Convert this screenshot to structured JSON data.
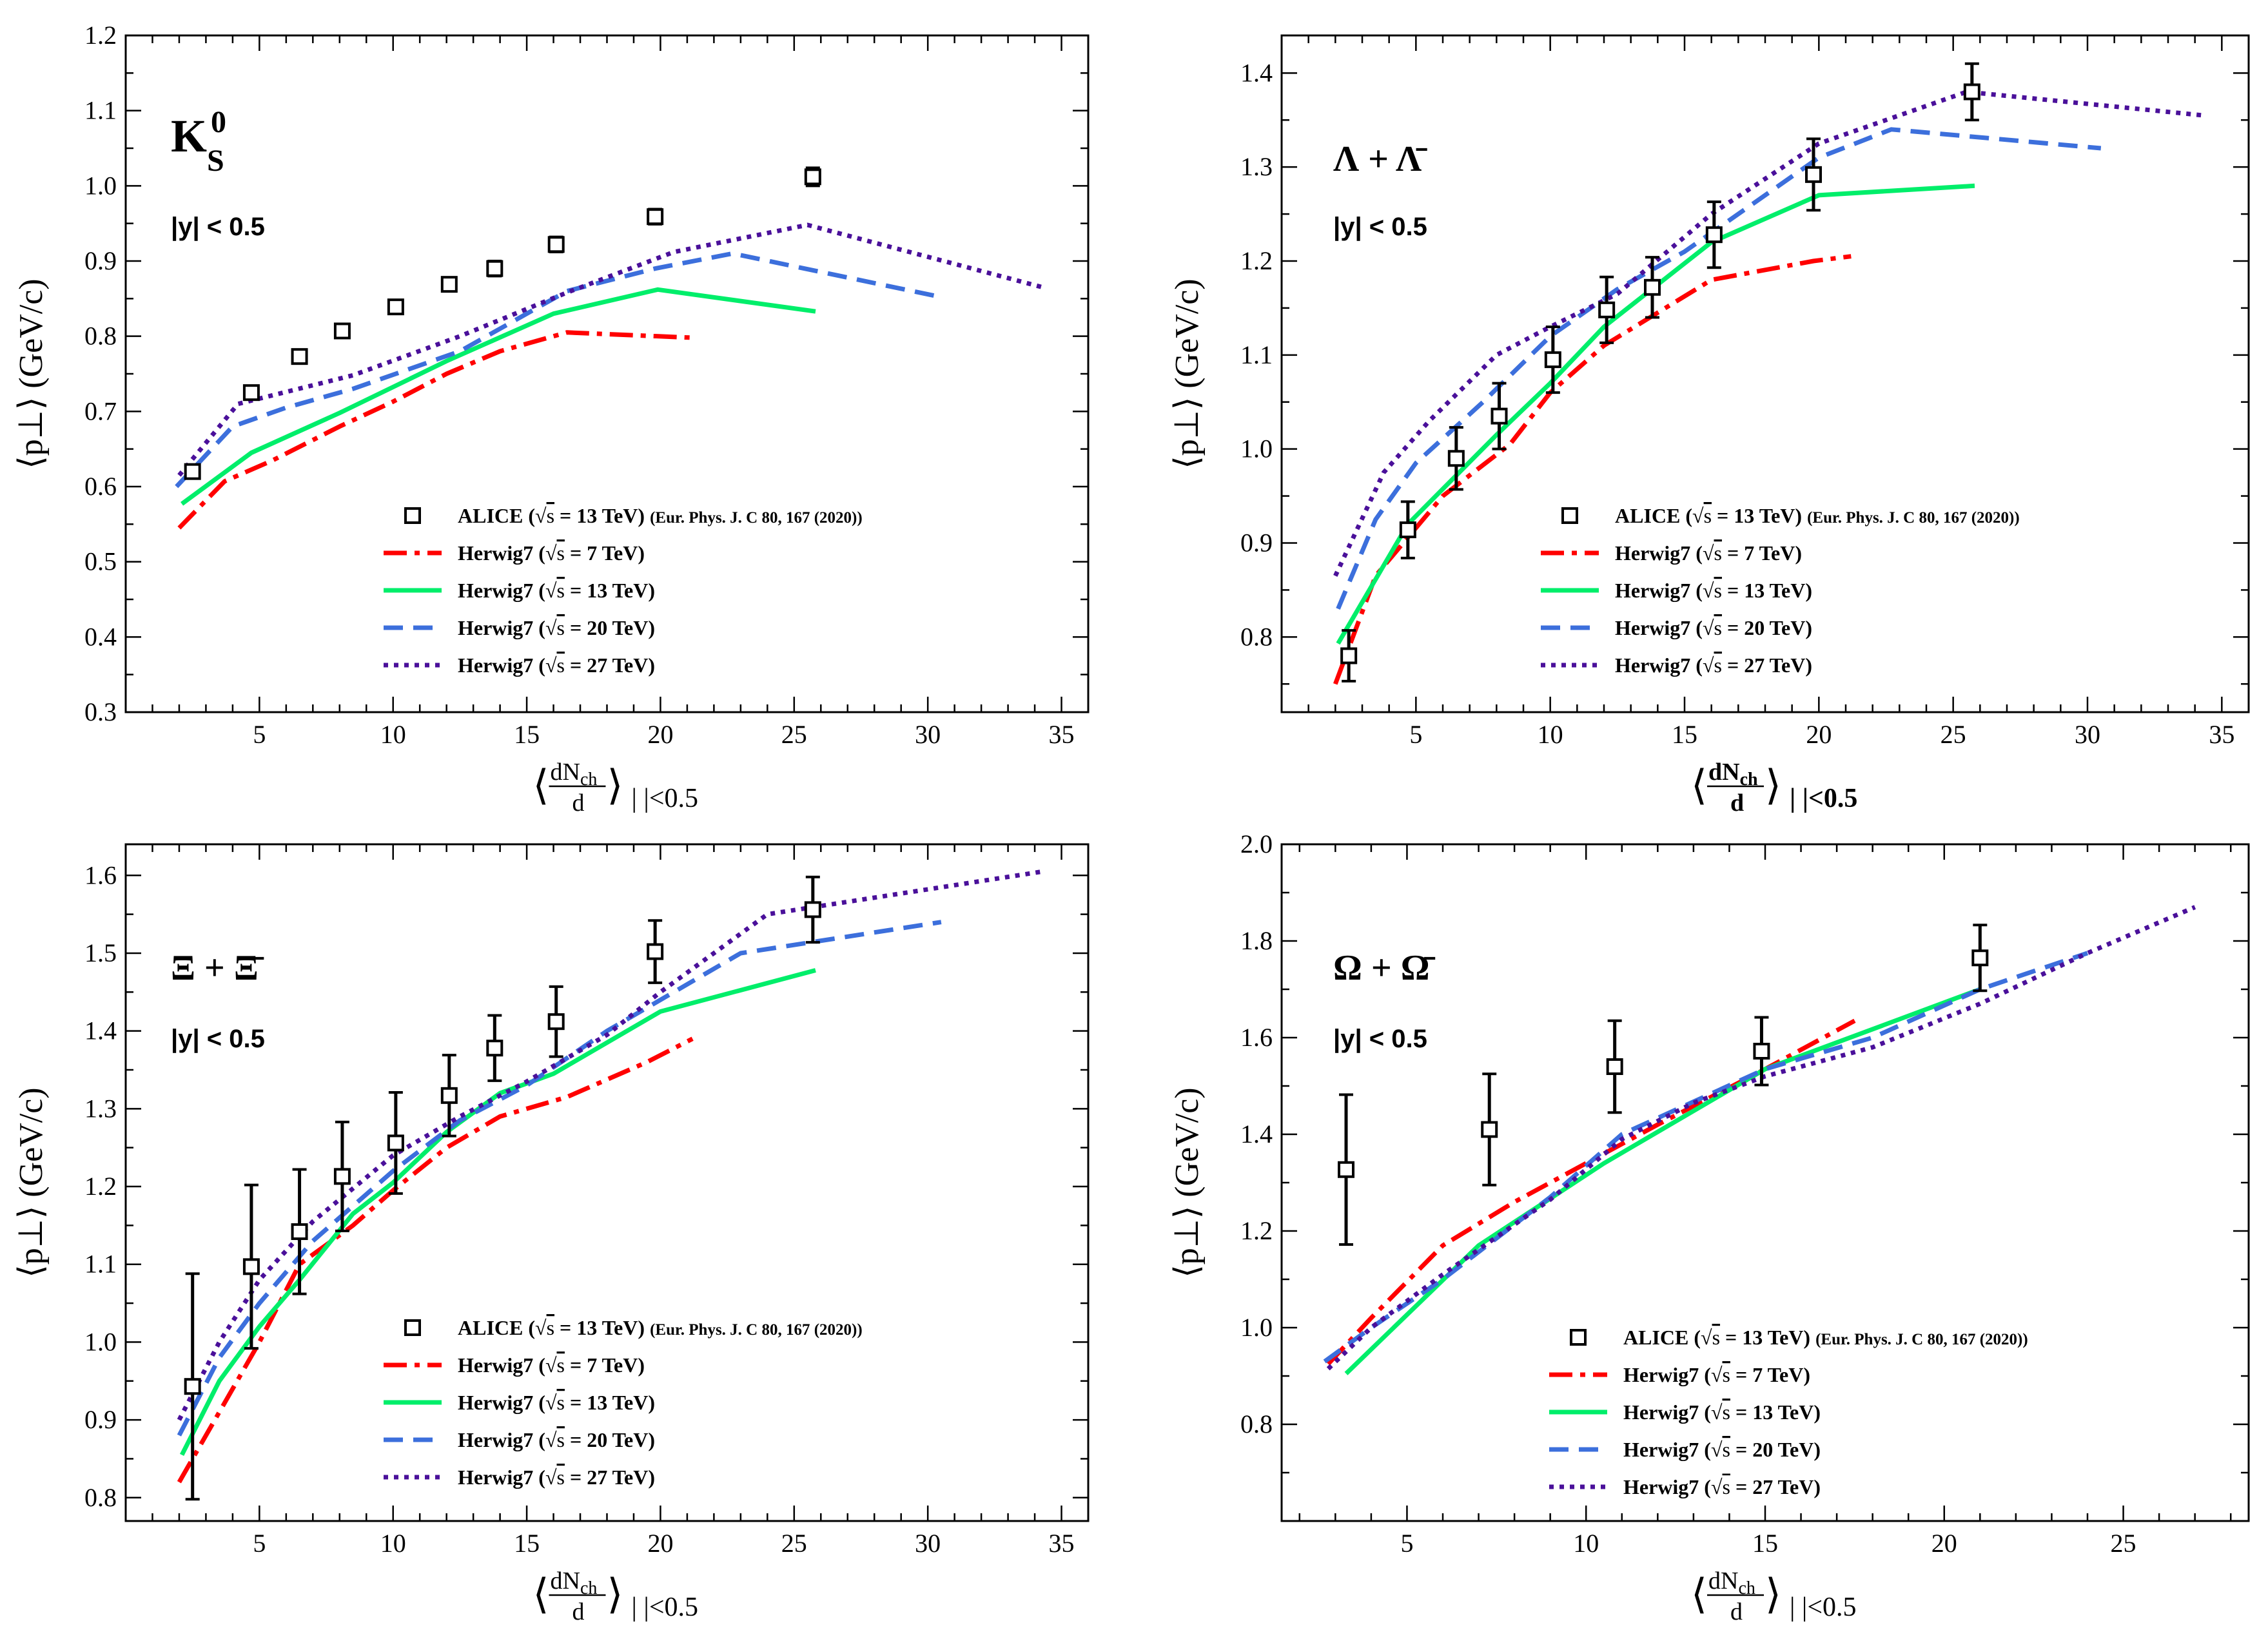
{
  "figure": {
    "legend": {
      "alice_label": "ALICE",
      "alice_energy": "13 TeV)",
      "alice_ref": "(Eur. Phys. J. C 80, 167 (2020))",
      "herwig_label": "Herwig7",
      "sqrt_s": "s",
      "energies": [
        "7 TeV)",
        "13 TeV)",
        "20 TeV)",
        "27 TeV)"
      ]
    },
    "rapidity_cut": "|y| < 0.5"
  },
  "colors": {
    "herwig_7": "#ff0000",
    "herwig_13": "#00ee6a",
    "herwig_20": "#3c6fdc",
    "herwig_27": "#4a109a",
    "alice": "#000000"
  },
  "chart_data": [
    {
      "type": "line",
      "particle": "K_S^0",
      "particle_main": "K",
      "particle_sup": "0",
      "particle_sub": "S",
      "ylabel": "⟨p⊥⟩ (GeV/c)",
      "xlabel_frac_num": "dN",
      "xlabel_frac_num_sub": "ch",
      "xlabel_frac_den": "d",
      "xlabel_tail": "|    |<0.5",
      "xlim": [
        0,
        36
      ],
      "ylim": [
        0.3,
        1.2
      ],
      "xticks": [
        5,
        10,
        15,
        20,
        25,
        30,
        35
      ],
      "yticks": [
        0.3,
        0.4,
        0.5,
        0.6,
        0.7,
        0.8,
        0.9,
        1.0,
        1.1,
        1.2
      ],
      "ytick_labels": [
        "0.3",
        "0.4",
        "0.5",
        "0.6",
        "0.7",
        "0.8",
        "0.9",
        "1.0",
        "1.1",
        "1.2"
      ],
      "alice": {
        "x": [
          2.5,
          4.7,
          6.5,
          8.1,
          10.1,
          12.1,
          13.8,
          16.1,
          19.8,
          25.7
        ],
        "y": [
          0.62,
          0.725,
          0.773,
          0.807,
          0.839,
          0.869,
          0.89,
          0.922,
          0.959,
          1.012
        ],
        "err": [
          0.008,
          0.008,
          0.008,
          0.008,
          0.008,
          0.008,
          0.01,
          0.01,
          0.01,
          0.012
        ]
      },
      "series": [
        {
          "name": "Herwig7 (√s = 7 TeV)",
          "x": [
            2.0,
            3.7,
            5.5,
            8,
            10,
            12,
            14,
            16.5,
            21.2
          ],
          "y": [
            0.545,
            0.607,
            0.635,
            0.68,
            0.713,
            0.75,
            0.78,
            0.805,
            0.798
          ]
        },
        {
          "name": "Herwig7 (√s = 13 TeV)",
          "x": [
            2.1,
            4.7,
            8,
            12,
            16,
            19.9,
            25.8
          ],
          "y": [
            0.577,
            0.645,
            0.698,
            0.767,
            0.83,
            0.862,
            0.833
          ]
        },
        {
          "name": "Herwig7 (√s = 20 TeV)",
          "x": [
            1.9,
            4.0,
            6.0,
            8.5,
            12.5,
            16.5,
            19.8,
            22.7,
            30.5
          ],
          "y": [
            0.6,
            0.68,
            0.705,
            0.73,
            0.78,
            0.86,
            0.89,
            0.91,
            0.852
          ]
        },
        {
          "name": "Herwig7 (√s = 27 TeV)",
          "x": [
            2.0,
            4.2,
            8.5,
            12.5,
            16.5,
            20.5,
            25.5,
            34.3
          ],
          "y": [
            0.615,
            0.71,
            0.748,
            0.8,
            0.858,
            0.912,
            0.948,
            0.865
          ]
        }
      ]
    },
    {
      "type": "line",
      "particle": "Λ + Λ̄",
      "particle_text": "Λ + Λ̄",
      "ylabel": "⟨p⊥⟩ (GeV/c)",
      "xlabel_frac_num": "dN",
      "xlabel_frac_num_sub": "ch",
      "xlabel_frac_den": "d",
      "xlabel_tail": "|    |<0.5",
      "xlim": [
        0,
        36
      ],
      "ylim": [
        0.72,
        1.44
      ],
      "xticks": [
        5,
        10,
        15,
        20,
        25,
        30,
        35
      ],
      "yticks": [
        0.8,
        0.9,
        1.0,
        1.1,
        1.2,
        1.3,
        1.4
      ],
      "ytick_labels": [
        "0.8",
        "0.9",
        "1.0",
        "1.1",
        "1.2",
        "1.3",
        "1.4"
      ],
      "alice": {
        "x": [
          2.5,
          4.7,
          6.5,
          8.1,
          10.1,
          12.1,
          13.8,
          16.1,
          19.8,
          25.7
        ],
        "y": [
          0.78,
          0.914,
          0.99,
          1.035,
          1.095,
          1.148,
          1.172,
          1.228,
          1.292,
          1.38
        ],
        "err": [
          0.027,
          0.03,
          0.033,
          0.035,
          0.035,
          0.035,
          0.032,
          0.035,
          0.038,
          0.03
        ]
      },
      "series": [
        {
          "name": "Herwig7 (√s = 7 TeV)",
          "x": [
            2.0,
            3.5,
            6.0,
            8.5,
            10.0,
            12.0,
            14.0,
            16.0,
            19.8,
            21.2
          ],
          "y": [
            0.75,
            0.865,
            0.95,
            1.005,
            1.06,
            1.11,
            1.145,
            1.18,
            1.2,
            1.205
          ]
        },
        {
          "name": "Herwig7 (√s = 13 TeV)",
          "x": [
            2.1,
            4.7,
            8,
            10,
            12,
            14,
            16,
            20,
            25.8
          ],
          "y": [
            0.793,
            0.92,
            1.015,
            1.07,
            1.13,
            1.175,
            1.22,
            1.27,
            1.28
          ]
        },
        {
          "name": "Herwig7 (√s = 20 TeV)",
          "x": [
            2.1,
            3.5,
            5.0,
            7.5,
            10.0,
            12.5,
            15.0,
            18.0,
            20.0,
            22.7,
            30.5
          ],
          "y": [
            0.83,
            0.925,
            0.985,
            1.05,
            1.12,
            1.17,
            1.21,
            1.27,
            1.31,
            1.34,
            1.32
          ]
        },
        {
          "name": "Herwig7 (√s = 27 TeV)",
          "x": [
            2.0,
            3.8,
            5.5,
            8.0,
            10.0,
            12.5,
            16.0,
            20.0,
            25.5,
            34.3
          ],
          "y": [
            0.865,
            0.975,
            1.03,
            1.1,
            1.13,
            1.165,
            1.25,
            1.325,
            1.38,
            1.355
          ]
        }
      ]
    },
    {
      "type": "line",
      "particle": "Ξ + Ξ̄",
      "particle_text": "Ξ + Ξ̄",
      "ylabel": "⟨p⊥⟩ (GeV/c)",
      "xlabel_frac_num": "dN",
      "xlabel_frac_num_sub": "ch",
      "xlabel_frac_den": "d",
      "xlabel_tail": "|    |<0.5",
      "xlim": [
        0,
        36
      ],
      "ylim": [
        0.77,
        1.64
      ],
      "xticks": [
        5,
        10,
        15,
        20,
        25,
        30,
        35
      ],
      "yticks": [
        0.8,
        0.9,
        1.0,
        1.1,
        1.2,
        1.3,
        1.4,
        1.5,
        1.6
      ],
      "ytick_labels": [
        "0.8",
        "0.9",
        "1.0",
        "1.1",
        "1.2",
        "1.3",
        "1.4",
        "1.5",
        "1.6"
      ],
      "alice": {
        "x": [
          2.5,
          4.7,
          6.5,
          8.1,
          10.1,
          12.1,
          13.8,
          16.1,
          19.8,
          25.7
        ],
        "y": [
          0.943,
          1.097,
          1.142,
          1.213,
          1.256,
          1.317,
          1.378,
          1.412,
          1.502,
          1.556
        ],
        "err": [
          0.145,
          0.105,
          0.08,
          0.07,
          0.065,
          0.052,
          0.042,
          0.045,
          0.04,
          0.042
        ]
      },
      "series": [
        {
          "name": "Herwig7 (√s = 7 TeV)",
          "x": [
            2.0,
            3.5,
            5.0,
            6.5,
            8.5,
            10.0,
            12.0,
            14.0,
            16.5,
            19.5,
            21.2
          ],
          "y": [
            0.82,
            0.91,
            1.0,
            1.1,
            1.15,
            1.195,
            1.25,
            1.29,
            1.315,
            1.36,
            1.39
          ]
        },
        {
          "name": "Herwig7 (√s = 13 TeV)",
          "x": [
            2.1,
            3.5,
            5.0,
            6.5,
            8.5,
            10.0,
            12.0,
            14.0,
            16.0,
            20.0,
            25.8
          ],
          "y": [
            0.855,
            0.95,
            1.02,
            1.08,
            1.165,
            1.205,
            1.27,
            1.32,
            1.345,
            1.425,
            1.478
          ]
        },
        {
          "name": "Herwig7 (√s = 20 TeV)",
          "x": [
            2.0,
            3.5,
            5.0,
            7.0,
            10.0,
            12.5,
            15.0,
            18.0,
            23.0,
            30.5
          ],
          "y": [
            0.88,
            0.98,
            1.05,
            1.13,
            1.22,
            1.285,
            1.33,
            1.4,
            1.5,
            1.54
          ]
        },
        {
          "name": "Herwig7 (√s = 27 TeV)",
          "x": [
            2.0,
            3.5,
            5.0,
            7.0,
            10.0,
            12.5,
            15.0,
            18.0,
            20.0,
            24.0,
            34.3
          ],
          "y": [
            0.9,
            1.0,
            1.08,
            1.155,
            1.24,
            1.29,
            1.335,
            1.395,
            1.45,
            1.55,
            1.605
          ]
        }
      ]
    },
    {
      "type": "line",
      "particle": "Ω + Ω̄",
      "particle_text": "Ω + Ω̄",
      "ylabel": "⟨p⊥⟩ (GeV/c)",
      "xlabel_frac_num": "dN",
      "xlabel_frac_num_sub": "ch",
      "xlabel_frac_den": "d",
      "xlabel_tail": "|    |<0.5",
      "xlim": [
        1.5,
        28.5
      ],
      "ylim": [
        0.6,
        2.0
      ],
      "xticks": [
        5,
        10,
        15,
        20,
        25
      ],
      "yticks": [
        0.8,
        1.0,
        1.2,
        1.4,
        1.6,
        1.8,
        2.0
      ],
      "ytick_labels": [
        "0.8",
        "1.0",
        "1.2",
        "1.4",
        "1.6",
        "1.8",
        "2.0"
      ],
      "alice": {
        "x": [
          3.3,
          7.3,
          10.8,
          14.9,
          21.0
        ],
        "y": [
          1.327,
          1.41,
          1.54,
          1.572,
          1.765
        ],
        "err": [
          0.155,
          0.115,
          0.095,
          0.07,
          0.068
        ]
      },
      "series": [
        {
          "name": "Herwig7 (√s = 7 TeV)",
          "x": [
            2.8,
            4.0,
            6.0,
            8.0,
            10.0,
            12.0,
            15.0,
            17.5
          ],
          "y": [
            0.925,
            1.02,
            1.17,
            1.26,
            1.34,
            1.42,
            1.535,
            1.635
          ]
        },
        {
          "name": "Herwig7 (√s = 13 TeV)",
          "x": [
            3.3,
            7.0,
            10.5,
            15.0,
            21.0
          ],
          "y": [
            0.905,
            1.17,
            1.34,
            1.535,
            1.7
          ]
        },
        {
          "name": "Herwig7 (√s = 20 TeV)",
          "x": [
            2.7,
            4.0,
            6.0,
            9.0,
            11.0,
            15.0,
            18.0,
            21.0,
            24.0
          ],
          "y": [
            0.93,
            1.0,
            1.1,
            1.27,
            1.4,
            1.535,
            1.6,
            1.7,
            1.775
          ]
        },
        {
          "name": "Herwig7 (√s = 27 TeV)",
          "x": [
            2.8,
            4.0,
            6.0,
            9.0,
            11.0,
            13.0,
            15.0,
            18.0,
            21.0,
            24.0,
            27.0
          ],
          "y": [
            0.915,
            1.0,
            1.11,
            1.265,
            1.39,
            1.465,
            1.52,
            1.58,
            1.67,
            1.775,
            1.87
          ]
        }
      ]
    }
  ]
}
